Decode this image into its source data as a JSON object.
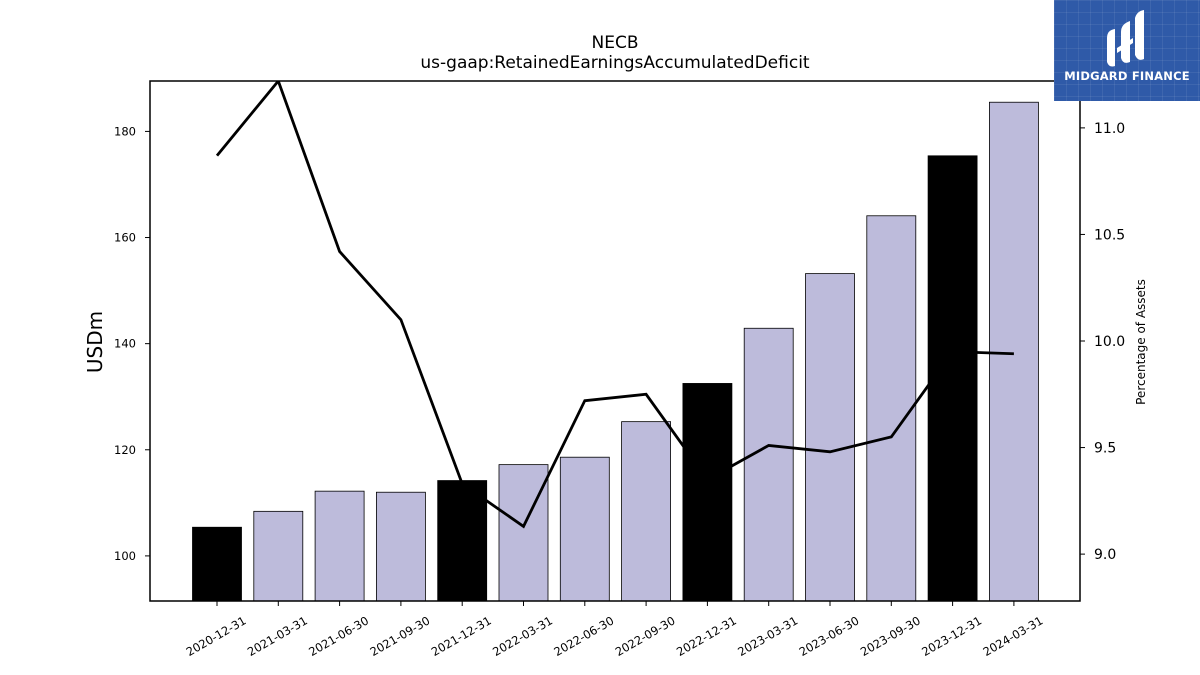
{
  "chart_data": {
    "type": "bar",
    "title": "NECB",
    "subtitle": "us-gaap:RetainedEarningsAccumulatedDeficit",
    "ylabel": "USDm",
    "y2label": "Percentage of Assets",
    "categories": [
      "2020-12-31",
      "2021-03-31",
      "2021-06-30",
      "2021-09-30",
      "2021-12-31",
      "2022-03-31",
      "2022-06-30",
      "2022-09-30",
      "2022-12-31",
      "2023-03-31",
      "2023-06-30",
      "2023-09-30",
      "2023-12-31",
      "2024-03-31"
    ],
    "series": [
      {
        "type": "bar",
        "axis": "left",
        "values": [
          105.4,
          108.4,
          112.2,
          112.0,
          114.2,
          117.2,
          118.6,
          125.3,
          132.5,
          142.9,
          153.2,
          164.1,
          175.4,
          185.5
        ],
        "colors": [
          "#000000",
          "#bdbbdb",
          "#bdbbdb",
          "#bdbbdb",
          "#000000",
          "#bdbbdb",
          "#bdbbdb",
          "#bdbbdb",
          "#000000",
          "#bdbbdb",
          "#bdbbdb",
          "#bdbbdb",
          "#000000",
          "#bdbbdb"
        ]
      },
      {
        "type": "line",
        "axis": "right",
        "color": "#000000",
        "values": [
          10.87,
          11.22,
          10.42,
          10.1,
          9.33,
          9.13,
          9.72,
          9.75,
          9.35,
          9.51,
          9.48,
          9.55,
          9.95,
          9.94
        ]
      }
    ],
    "ylim": [
      91.5,
      189.5
    ],
    "yticks": [
      100,
      120,
      140,
      160,
      180
    ],
    "y2lim": [
      8.78,
      11.22
    ],
    "y2ticks": [
      "9.0",
      "9.5",
      "10.0",
      "10.5",
      "11.0"
    ],
    "grid": false,
    "legend": "none"
  },
  "brand": {
    "name": "MIDGARD FINANCE",
    "background": "#2f5aa8"
  }
}
